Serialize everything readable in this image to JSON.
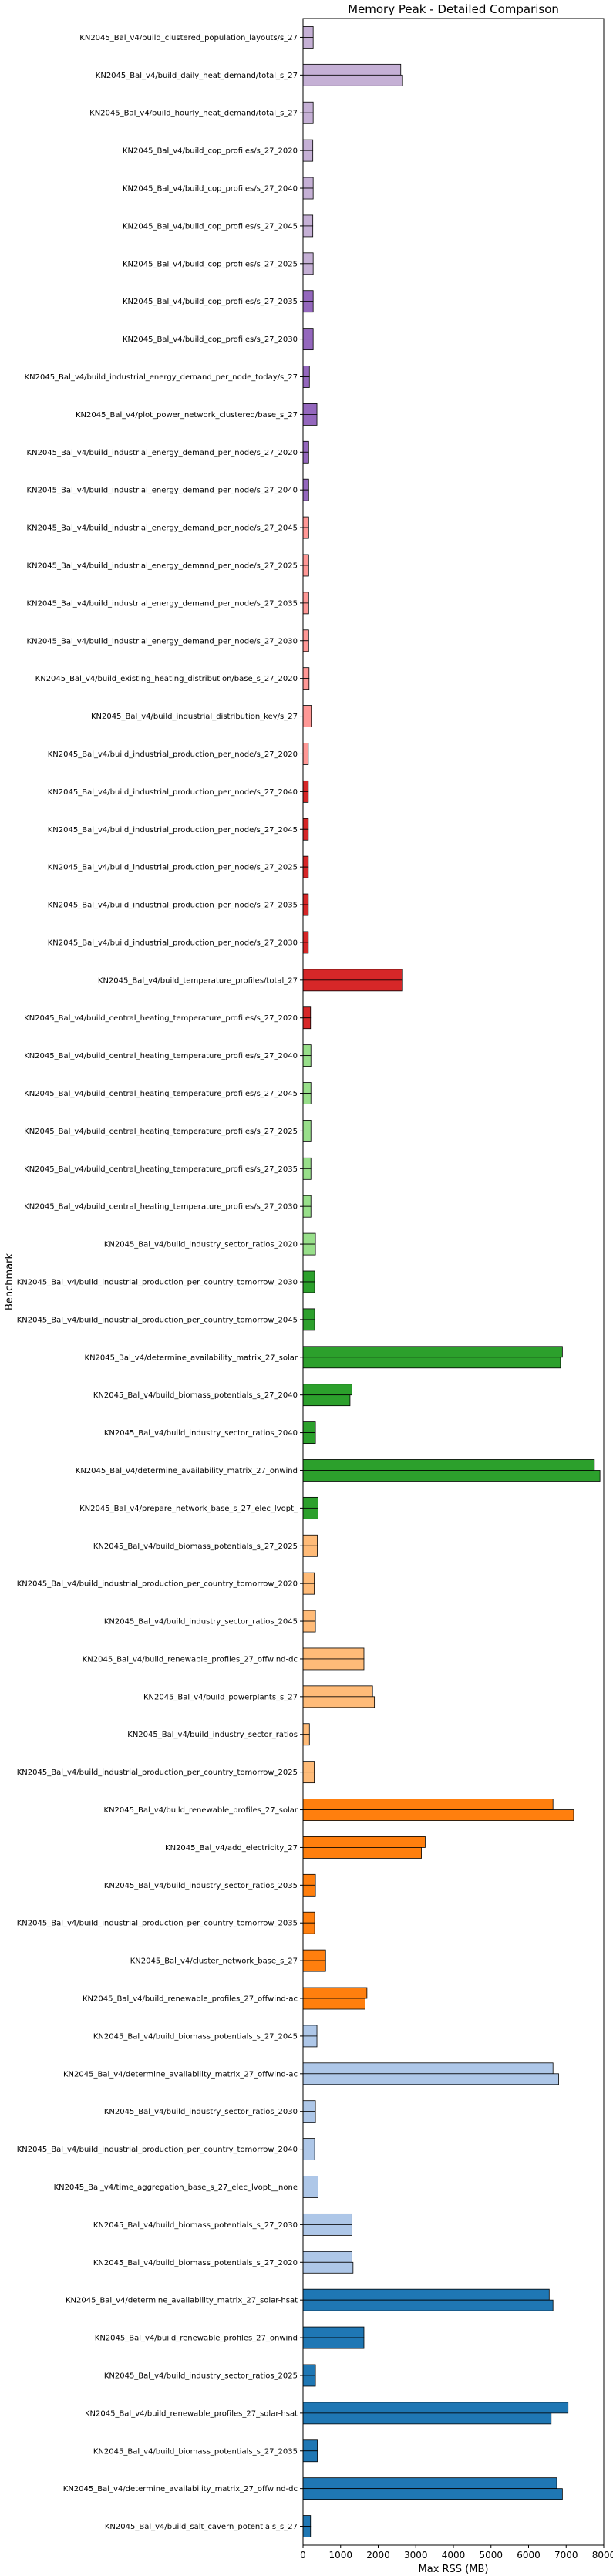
{
  "chart_data": {
    "type": "bar",
    "orientation": "horizontal",
    "title": "Memory Peak - Detailed Comparison",
    "xlabel": "Max RSS (MB)",
    "ylabel": "Benchmark",
    "xlim": [
      0,
      8000
    ],
    "xticks": [
      0,
      1000,
      2000,
      3000,
      4000,
      5000,
      6000,
      7000,
      8000
    ],
    "grid": false,
    "legend": "none",
    "bar_edge_color": "#000000",
    "categories": [
      {
        "label": "KN2045_Bal_v4/build_clustered_population_layouts/s_27",
        "values": [
          270,
          270
        ],
        "color": "#c5b0d5"
      },
      {
        "label": "KN2045_Bal_v4/build_daily_heat_demand/total_s_27",
        "values": [
          2600,
          2650
        ],
        "color": "#c5b0d5"
      },
      {
        "label": "KN2045_Bal_v4/build_hourly_heat_demand/total_s_27",
        "values": [
          270,
          270
        ],
        "color": "#c5b0d5"
      },
      {
        "label": "KN2045_Bal_v4/build_cop_profiles/s_27_2020",
        "values": [
          260,
          260
        ],
        "color": "#c5b0d5"
      },
      {
        "label": "KN2045_Bal_v4/build_cop_profiles/s_27_2040",
        "values": [
          270,
          270
        ],
        "color": "#c5b0d5"
      },
      {
        "label": "KN2045_Bal_v4/build_cop_profiles/s_27_2045",
        "values": [
          260,
          260
        ],
        "color": "#c5b0d5"
      },
      {
        "label": "KN2045_Bal_v4/build_cop_profiles/s_27_2025",
        "values": [
          270,
          270
        ],
        "color": "#c5b0d5"
      },
      {
        "label": "KN2045_Bal_v4/build_cop_profiles/s_27_2035",
        "values": [
          270,
          270
        ],
        "color": "#9467bd"
      },
      {
        "label": "KN2045_Bal_v4/build_cop_profiles/s_27_2030",
        "values": [
          270,
          270
        ],
        "color": "#9467bd"
      },
      {
        "label": "KN2045_Bal_v4/build_industrial_energy_demand_per_node_today/s_27",
        "values": [
          170,
          170
        ],
        "color": "#9467bd"
      },
      {
        "label": "KN2045_Bal_v4/plot_power_network_clustered/base_s_27",
        "values": [
          370,
          370
        ],
        "color": "#9467bd"
      },
      {
        "label": "KN2045_Bal_v4/build_industrial_energy_demand_per_node/s_27_2020",
        "values": [
          150,
          150
        ],
        "color": "#9467bd"
      },
      {
        "label": "KN2045_Bal_v4/build_industrial_energy_demand_per_node/s_27_2040",
        "values": [
          150,
          150
        ],
        "color": "#9467bd"
      },
      {
        "label": "KN2045_Bal_v4/build_industrial_energy_demand_per_node/s_27_2045",
        "values": [
          150,
          150
        ],
        "color": "#ff9896"
      },
      {
        "label": "KN2045_Bal_v4/build_industrial_energy_demand_per_node/s_27_2025",
        "values": [
          150,
          150
        ],
        "color": "#ff9896"
      },
      {
        "label": "KN2045_Bal_v4/build_industrial_energy_demand_per_node/s_27_2035",
        "values": [
          150,
          150
        ],
        "color": "#ff9896"
      },
      {
        "label": "KN2045_Bal_v4/build_industrial_energy_demand_per_node/s_27_2030",
        "values": [
          150,
          150
        ],
        "color": "#ff9896"
      },
      {
        "label": "KN2045_Bal_v4/build_existing_heating_distribution/base_s_27_2020",
        "values": [
          160,
          160
        ],
        "color": "#ff9896"
      },
      {
        "label": "KN2045_Bal_v4/build_industrial_distribution_key/s_27",
        "values": [
          220,
          220
        ],
        "color": "#ff9896"
      },
      {
        "label": "KN2045_Bal_v4/build_industrial_production_per_node/s_27_2020",
        "values": [
          140,
          140
        ],
        "color": "#ff9896"
      },
      {
        "label": "KN2045_Bal_v4/build_industrial_production_per_node/s_27_2040",
        "values": [
          140,
          140
        ],
        "color": "#d62728"
      },
      {
        "label": "KN2045_Bal_v4/build_industrial_production_per_node/s_27_2045",
        "values": [
          140,
          140
        ],
        "color": "#d62728"
      },
      {
        "label": "KN2045_Bal_v4/build_industrial_production_per_node/s_27_2025",
        "values": [
          140,
          140
        ],
        "color": "#d62728"
      },
      {
        "label": "KN2045_Bal_v4/build_industrial_production_per_node/s_27_2035",
        "values": [
          140,
          140
        ],
        "color": "#d62728"
      },
      {
        "label": "KN2045_Bal_v4/build_industrial_production_per_node/s_27_2030",
        "values": [
          140,
          140
        ],
        "color": "#d62728"
      },
      {
        "label": "KN2045_Bal_v4/build_temperature_profiles/total_27",
        "values": [
          2650,
          2650
        ],
        "color": "#d62728"
      },
      {
        "label": "KN2045_Bal_v4/build_central_heating_temperature_profiles/s_27_2020",
        "values": [
          200,
          200
        ],
        "color": "#d62728"
      },
      {
        "label": "KN2045_Bal_v4/build_central_heating_temperature_profiles/s_27_2040",
        "values": [
          210,
          210
        ],
        "color": "#98df8a"
      },
      {
        "label": "KN2045_Bal_v4/build_central_heating_temperature_profiles/s_27_2045",
        "values": [
          210,
          210
        ],
        "color": "#98df8a"
      },
      {
        "label": "KN2045_Bal_v4/build_central_heating_temperature_profiles/s_27_2025",
        "values": [
          210,
          210
        ],
        "color": "#98df8a"
      },
      {
        "label": "KN2045_Bal_v4/build_central_heating_temperature_profiles/s_27_2035",
        "values": [
          210,
          210
        ],
        "color": "#98df8a"
      },
      {
        "label": "KN2045_Bal_v4/build_central_heating_temperature_profiles/s_27_2030",
        "values": [
          210,
          210
        ],
        "color": "#98df8a"
      },
      {
        "label": "KN2045_Bal_v4/build_industry_sector_ratios_2020",
        "values": [
          330,
          330
        ],
        "color": "#98df8a"
      },
      {
        "label": "KN2045_Bal_v4/build_industrial_production_per_country_tomorrow_2030",
        "values": [
          310,
          310
        ],
        "color": "#2ca02c"
      },
      {
        "label": "KN2045_Bal_v4/build_industrial_production_per_country_tomorrow_2045",
        "values": [
          310,
          310
        ],
        "color": "#2ca02c"
      },
      {
        "label": "KN2045_Bal_v4/determine_availability_matrix_27_solar",
        "values": [
          6900,
          6850
        ],
        "color": "#2ca02c"
      },
      {
        "label": "KN2045_Bal_v4/build_biomass_potentials_s_27_2040",
        "values": [
          1300,
          1250
        ],
        "color": "#2ca02c"
      },
      {
        "label": "KN2045_Bal_v4/build_industry_sector_ratios_2040",
        "values": [
          330,
          330
        ],
        "color": "#2ca02c"
      },
      {
        "label": "KN2045_Bal_v4/determine_availability_matrix_27_onwind",
        "values": [
          7750,
          7900
        ],
        "color": "#2ca02c"
      },
      {
        "label": "KN2045_Bal_v4/prepare_network_base_s_27_elec_lvopt_",
        "values": [
          400,
          400
        ],
        "color": "#2ca02c"
      },
      {
        "label": "KN2045_Bal_v4/build_biomass_potentials_s_27_2025",
        "values": [
          380,
          380
        ],
        "color": "#ffbb78"
      },
      {
        "label": "KN2045_Bal_v4/build_industrial_production_per_country_tomorrow_2020",
        "values": [
          300,
          300
        ],
        "color": "#ffbb78"
      },
      {
        "label": "KN2045_Bal_v4/build_industry_sector_ratios_2045",
        "values": [
          330,
          330
        ],
        "color": "#ffbb78"
      },
      {
        "label": "KN2045_Bal_v4/build_renewable_profiles_27_offwind-dc",
        "values": [
          1620,
          1620
        ],
        "color": "#ffbb78"
      },
      {
        "label": "KN2045_Bal_v4/build_powerplants_s_27",
        "values": [
          1850,
          1900
        ],
        "color": "#ffbb78"
      },
      {
        "label": "KN2045_Bal_v4/build_industry_sector_ratios",
        "values": [
          170,
          170
        ],
        "color": "#ffbb78"
      },
      {
        "label": "KN2045_Bal_v4/build_industrial_production_per_country_tomorrow_2025",
        "values": [
          300,
          300
        ],
        "color": "#ffbb78"
      },
      {
        "label": "KN2045_Bal_v4/build_renewable_profiles_27_solar",
        "values": [
          6650,
          7200
        ],
        "color": "#ff7f0e"
      },
      {
        "label": "KN2045_Bal_v4/add_electricity_27",
        "values": [
          3250,
          3150
        ],
        "color": "#ff7f0e"
      },
      {
        "label": "KN2045_Bal_v4/build_industry_sector_ratios_2035",
        "values": [
          330,
          330
        ],
        "color": "#ff7f0e"
      },
      {
        "label": "KN2045_Bal_v4/build_industrial_production_per_country_tomorrow_2035",
        "values": [
          310,
          310
        ],
        "color": "#ff7f0e"
      },
      {
        "label": "KN2045_Bal_v4/cluster_network_base_s_27",
        "values": [
          600,
          600
        ],
        "color": "#ff7f0e"
      },
      {
        "label": "KN2045_Bal_v4/build_renewable_profiles_27_offwind-ac",
        "values": [
          1700,
          1650
        ],
        "color": "#ff7f0e"
      },
      {
        "label": "KN2045_Bal_v4/build_biomass_potentials_s_27_2045",
        "values": [
          370,
          370
        ],
        "color": "#aec7e8"
      },
      {
        "label": "KN2045_Bal_v4/determine_availability_matrix_27_offwind-ac",
        "values": [
          6650,
          6800
        ],
        "color": "#aec7e8"
      },
      {
        "label": "KN2045_Bal_v4/build_industry_sector_ratios_2030",
        "values": [
          330,
          330
        ],
        "color": "#aec7e8"
      },
      {
        "label": "KN2045_Bal_v4/build_industrial_production_per_country_tomorrow_2040",
        "values": [
          310,
          310
        ],
        "color": "#aec7e8"
      },
      {
        "label": "KN2045_Bal_v4/time_aggregation_base_s_27_elec_lvopt__none",
        "values": [
          400,
          400
        ],
        "color": "#aec7e8"
      },
      {
        "label": "KN2045_Bal_v4/build_biomass_potentials_s_27_2030",
        "values": [
          1300,
          1300
        ],
        "color": "#aec7e8"
      },
      {
        "label": "KN2045_Bal_v4/build_biomass_potentials_s_27_2020",
        "values": [
          1300,
          1330
        ],
        "color": "#aec7e8"
      },
      {
        "label": "KN2045_Bal_v4/determine_availability_matrix_27_solar-hsat",
        "values": [
          6550,
          6650
        ],
        "color": "#1f77b4"
      },
      {
        "label": "KN2045_Bal_v4/build_renewable_profiles_27_onwind",
        "values": [
          1620,
          1620
        ],
        "color": "#1f77b4"
      },
      {
        "label": "KN2045_Bal_v4/build_industry_sector_ratios_2025",
        "values": [
          330,
          330
        ],
        "color": "#1f77b4"
      },
      {
        "label": "KN2045_Bal_v4/build_renewable_profiles_27_solar-hsat",
        "values": [
          7050,
          6600
        ],
        "color": "#1f77b4"
      },
      {
        "label": "KN2045_Bal_v4/build_biomass_potentials_s_27_2035",
        "values": [
          380,
          380
        ],
        "color": "#1f77b4"
      },
      {
        "label": "KN2045_Bal_v4/determine_availability_matrix_27_offwind-dc",
        "values": [
          6750,
          6900
        ],
        "color": "#1f77b4"
      },
      {
        "label": "KN2045_Bal_v4/build_salt_cavern_potentials_s_27",
        "values": [
          200,
          200
        ],
        "color": "#1f77b4"
      }
    ]
  }
}
